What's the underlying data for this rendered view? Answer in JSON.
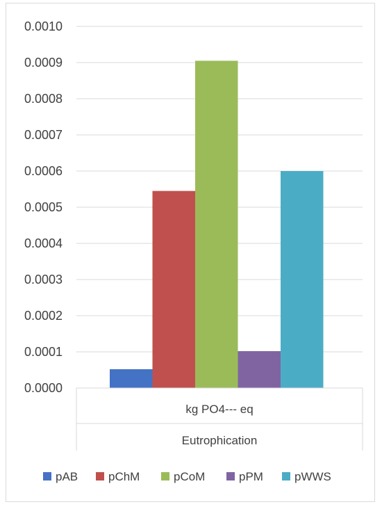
{
  "chart_data": {
    "type": "bar",
    "title": "",
    "xlabel": "",
    "ylabel": "",
    "categories": [
      "kg PO4--- eq"
    ],
    "group_label": "Eutrophication",
    "ylim": [
      0,
      0.001
    ],
    "yticks": [
      "0.0000",
      "0.0001",
      "0.0002",
      "0.0003",
      "0.0004",
      "0.0005",
      "0.0006",
      "0.0007",
      "0.0008",
      "0.0009",
      "0.0010"
    ],
    "grid": true,
    "legend_position": "bottom",
    "series": [
      {
        "name": "pAB",
        "values": [
          5.2e-05
        ],
        "color": "#4472c4"
      },
      {
        "name": "pChM",
        "values": [
          0.000545
        ],
        "color": "#c0504d"
      },
      {
        "name": "pCoM",
        "values": [
          0.000905
        ],
        "color": "#9bbb59"
      },
      {
        "name": "pPM",
        "values": [
          0.000102
        ],
        "color": "#8064a2"
      },
      {
        "name": "pWWS",
        "values": [
          0.0006
        ],
        "color": "#4bacc6"
      }
    ]
  }
}
